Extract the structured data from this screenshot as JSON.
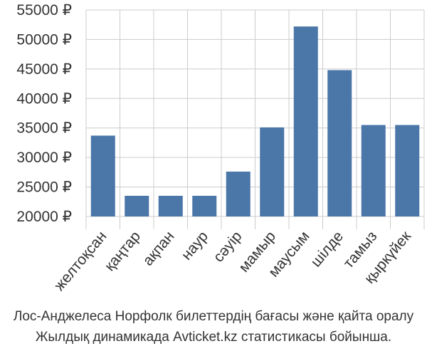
{
  "chart_data": {
    "type": "bar",
    "categories": [
      "желтоқсан",
      "қаңтар",
      "ақпан",
      "наур",
      "сәуір",
      "мамыр",
      "маусым",
      "шілде",
      "тамыз",
      "қыркүйек"
    ],
    "values": [
      33700,
      23500,
      23500,
      23500,
      27600,
      35100,
      52200,
      44800,
      35500,
      35500
    ],
    "ylim": [
      20000,
      55000
    ],
    "yticks": [
      20000,
      25000,
      30000,
      35000,
      40000,
      45000,
      50000,
      55000
    ],
    "ytick_labels": [
      "20000 ₽",
      "25000 ₽",
      "30000 ₽",
      "35000 ₽",
      "40000 ₽",
      "45000 ₽",
      "50000 ₽",
      "55000 ₽"
    ],
    "grid": true,
    "bar_color": "#4a76a8",
    "title": "",
    "xlabel": "",
    "ylabel": ""
  },
  "caption": {
    "line1": "Лос-Анджелеса Норфолк билеттердің бағасы және қайта оралу",
    "line2": "Жылдық динамикада Avticket.kz статистикасы бойынша."
  }
}
